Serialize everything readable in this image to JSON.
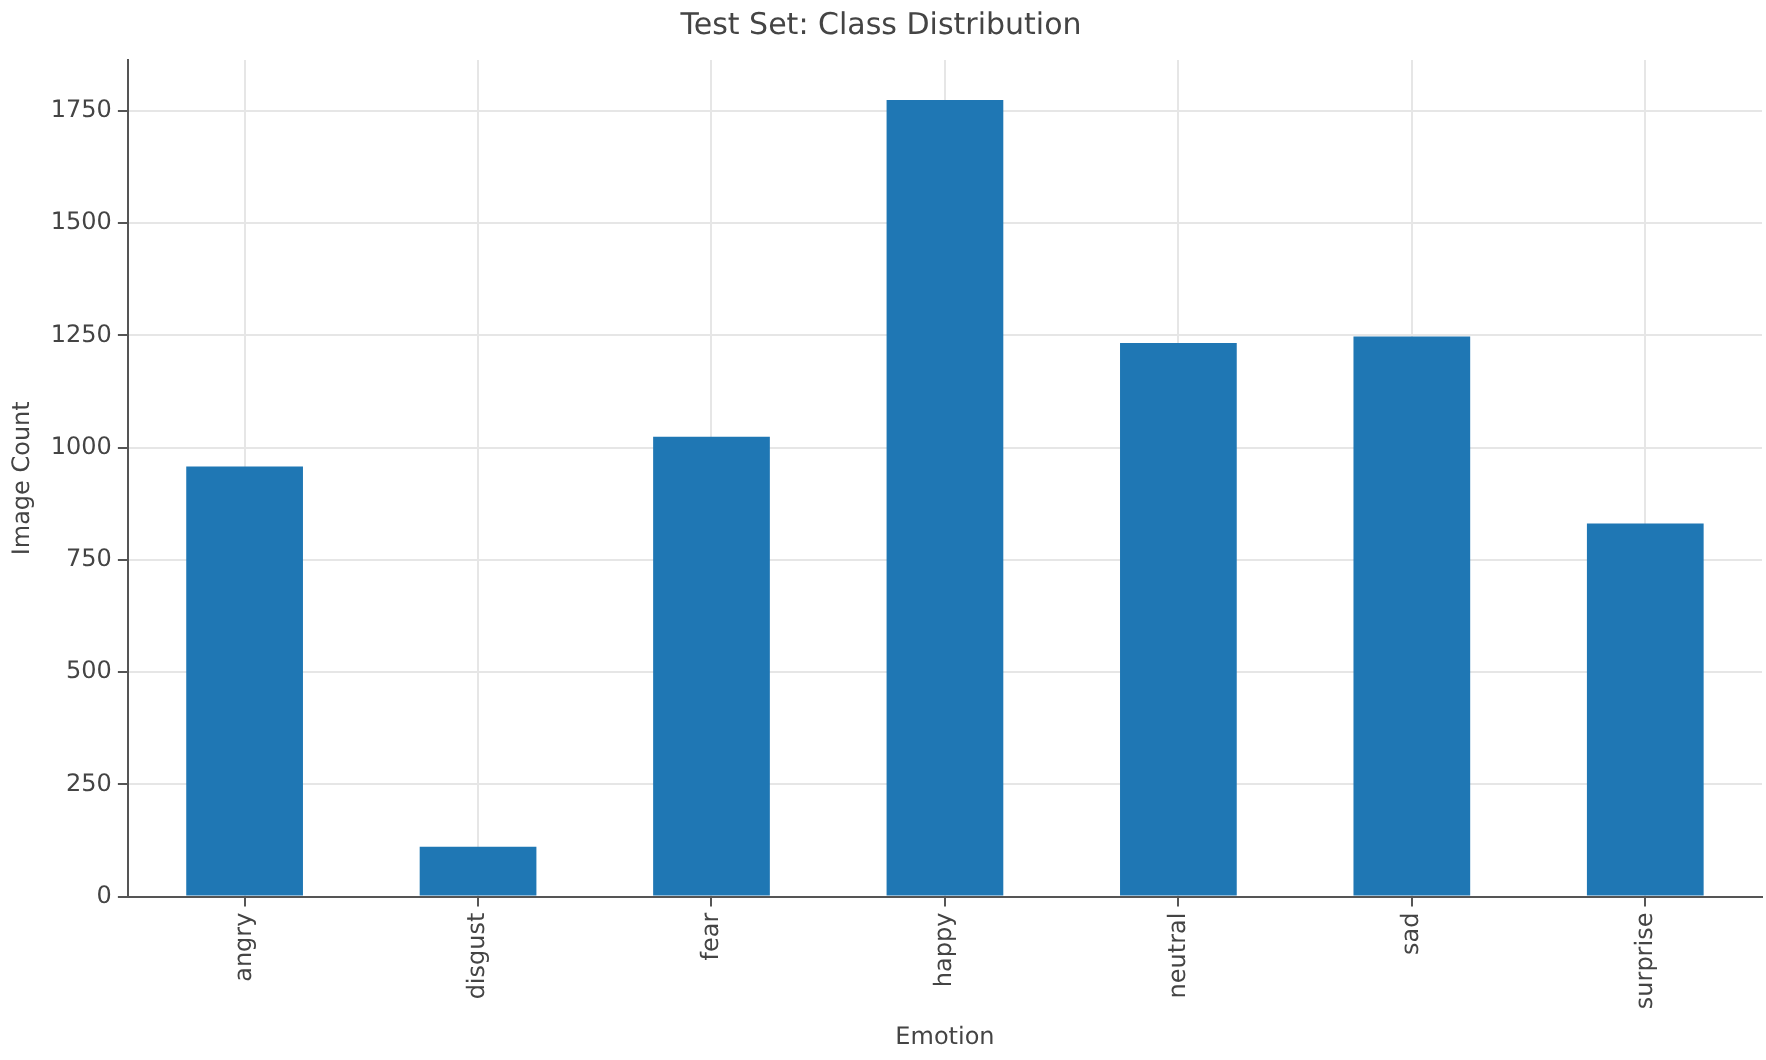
{
  "chart_data": {
    "type": "bar",
    "title": "Test Set: Class Distribution",
    "xlabel": "Emotion",
    "ylabel": "Image Count",
    "categories": [
      "angry",
      "disgust",
      "fear",
      "happy",
      "neutral",
      "sad",
      "surprise"
    ],
    "values": [
      958,
      111,
      1024,
      1774,
      1233,
      1247,
      831
    ],
    "color": "#1f77b4",
    "ylim": [
      0,
      1863
    ],
    "yticks": [
      0,
      250,
      500,
      750,
      1000,
      1250,
      1500,
      1750
    ],
    "grid": true
  }
}
